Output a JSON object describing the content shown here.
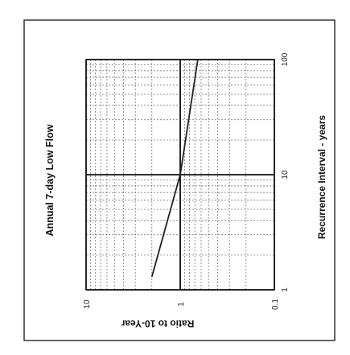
{
  "chart_data": {
    "type": "line",
    "orientation": "rotated-90-ccw",
    "title": "Annual 7-day Low Flow",
    "xlabel": "Recurrence Interval - years",
    "ylabel": "Ratio to 10-Year",
    "xscale": "log",
    "yscale": "log",
    "xlim": [
      1,
      100
    ],
    "ylim": [
      0.1,
      10
    ],
    "grid": true,
    "x_tick_labels": [
      "1",
      "10",
      "100"
    ],
    "y_tick_labels": [
      "10",
      "1",
      "0.1"
    ],
    "series": [
      {
        "x": [
          1.3,
          10,
          100
        ],
        "y": [
          2.0,
          1.0,
          0.65
        ]
      }
    ]
  }
}
